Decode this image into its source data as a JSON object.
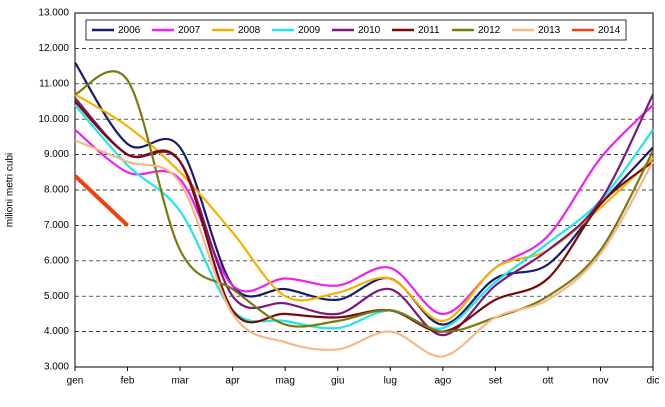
{
  "chart_data": {
    "type": "line",
    "y_label": "milioni metri cubi",
    "categories": [
      "gen",
      "feb",
      "mar",
      "apr",
      "mag",
      "giu",
      "lug",
      "ago",
      "set",
      "ott",
      "nov",
      "dic"
    ],
    "ylim": [
      3000,
      13000
    ],
    "yticks": [
      {
        "value": 3000,
        "label": "3.000"
      },
      {
        "value": 4000,
        "label": "4.000"
      },
      {
        "value": 5000,
        "label": "5.000"
      },
      {
        "value": 6000,
        "label": "6.000"
      },
      {
        "value": 7000,
        "label": "7.000"
      },
      {
        "value": 8000,
        "label": "8.000"
      },
      {
        "value": 9000,
        "label": "9.000"
      },
      {
        "value": 10000,
        "label": "10.000"
      },
      {
        "value": 11000,
        "label": "11.000"
      },
      {
        "value": 12000,
        "label": "12.000"
      },
      {
        "value": 13000,
        "label": "13.000"
      }
    ],
    "grid": true,
    "legend": "top",
    "series": [
      {
        "name": "2006",
        "color": "#1a1a6e",
        "values": [
          11600,
          9300,
          9200,
          5300,
          5200,
          4900,
          5500,
          4200,
          5500,
          5900,
          7600,
          9200
        ]
      },
      {
        "name": "2007",
        "color": "#ee22ee",
        "values": [
          9700,
          8500,
          8300,
          5300,
          5500,
          5300,
          5800,
          4500,
          5800,
          6700,
          8900,
          10400
        ]
      },
      {
        "name": "2008",
        "color": "#f2b400",
        "values": [
          10700,
          9800,
          8500,
          6800,
          5000,
          5100,
          5500,
          4300,
          5800,
          6300,
          7500,
          8900
        ]
      },
      {
        "name": "2009",
        "color": "#22e6e6",
        "values": [
          10400,
          8700,
          7400,
          4600,
          4300,
          4100,
          4600,
          4100,
          5400,
          6500,
          7700,
          9700
        ]
      },
      {
        "name": "2010",
        "color": "#7a1a7a",
        "values": [
          10600,
          9000,
          8800,
          5000,
          4800,
          4500,
          5200,
          3900,
          5300,
          6300,
          7700,
          10700
        ]
      },
      {
        "name": "2011",
        "color": "#7a0a0a",
        "values": [
          10500,
          9000,
          8800,
          4600,
          4500,
          4400,
          4600,
          4000,
          4900,
          5500,
          7600,
          8800
        ]
      },
      {
        "name": "2012",
        "color": "#7a7a10",
        "values": [
          10700,
          11100,
          6300,
          5200,
          4200,
          4300,
          4600,
          4000,
          4400,
          5000,
          6300,
          9100
        ]
      },
      {
        "name": "2013",
        "color": "#f5b88a",
        "values": [
          9400,
          8800,
          8200,
          4500,
          3700,
          3500,
          4000,
          3300,
          4400,
          4900,
          6200,
          8800
        ]
      },
      {
        "name": "2014",
        "color": "#f04010",
        "values": [
          8400,
          7000,
          null,
          null,
          null,
          null,
          null,
          null,
          null,
          null,
          null,
          null
        ]
      }
    ]
  }
}
